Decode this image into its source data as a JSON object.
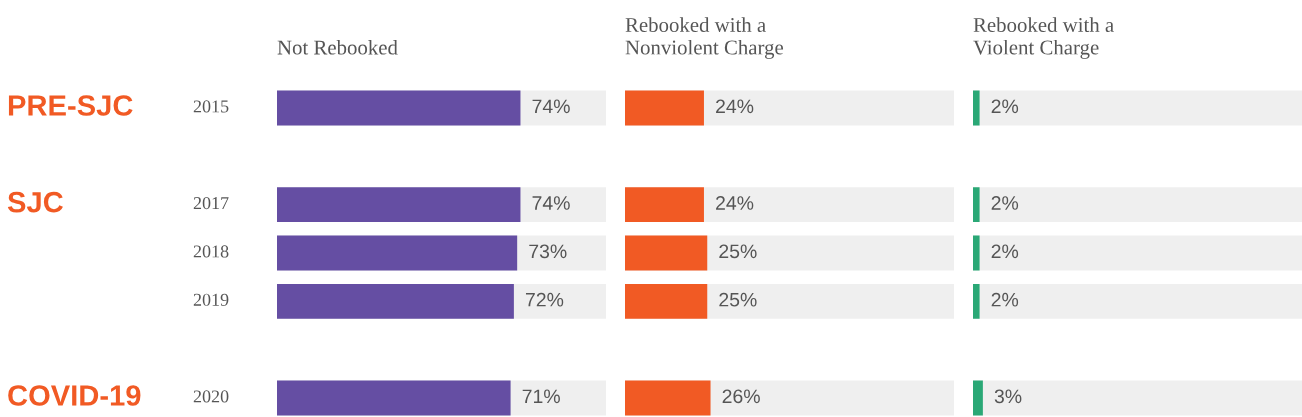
{
  "chart_data": [
    {
      "type": "bar",
      "orientation": "horizontal",
      "title": "Not Rebooked",
      "categories": [
        "2015",
        null,
        "2017",
        "2018",
        "2019",
        null,
        "2020"
      ],
      "values": [
        74,
        null,
        74,
        73,
        72,
        null,
        71
      ],
      "color": "#654ea3",
      "value_labels": [
        "74%",
        null,
        "74%",
        "73%",
        "72%",
        null,
        "71%"
      ],
      "xlim": [
        0,
        100
      ],
      "tick_labels": false,
      "bands": [
        {
          "axis": "x",
          "from": 0,
          "to": 100,
          "color": "#efefef"
        }
      ],
      "annotations": [
        "PRE-SJC",
        "SJC",
        "COVID-19"
      ]
    },
    {
      "type": "bar",
      "orientation": "horizontal",
      "title": "Rebooked with a\nNonviolent Charge",
      "categories": [
        "2015",
        null,
        "2017",
        "2018",
        "2019",
        null,
        "2020"
      ],
      "values": [
        24,
        null,
        24,
        25,
        25,
        null,
        26
      ],
      "color": "#f15a24",
      "value_labels": [
        "24%",
        null,
        "24%",
        "25%",
        "25%",
        null,
        "26%"
      ],
      "xlim": [
        0,
        100
      ],
      "tick_labels": false,
      "bands": [
        {
          "axis": "x",
          "from": 0,
          "to": 100,
          "color": "#efefef"
        }
      ]
    },
    {
      "type": "bar",
      "orientation": "horizontal",
      "title": "Rebooked with a\nViolent Charge",
      "categories": [
        "2015",
        null,
        "2017",
        "2018",
        "2019",
        null,
        "2020"
      ],
      "values": [
        2,
        null,
        2,
        2,
        2,
        null,
        3
      ],
      "color": "#2aa876",
      "value_labels": [
        "2%",
        null,
        "2%",
        "2%",
        "2%",
        null,
        "3%"
      ],
      "xlim": [
        0,
        100
      ],
      "tick_labels": false,
      "bands": [
        {
          "axis": "x",
          "from": 0,
          "to": 100,
          "color": "#efefef"
        }
      ]
    }
  ]
}
